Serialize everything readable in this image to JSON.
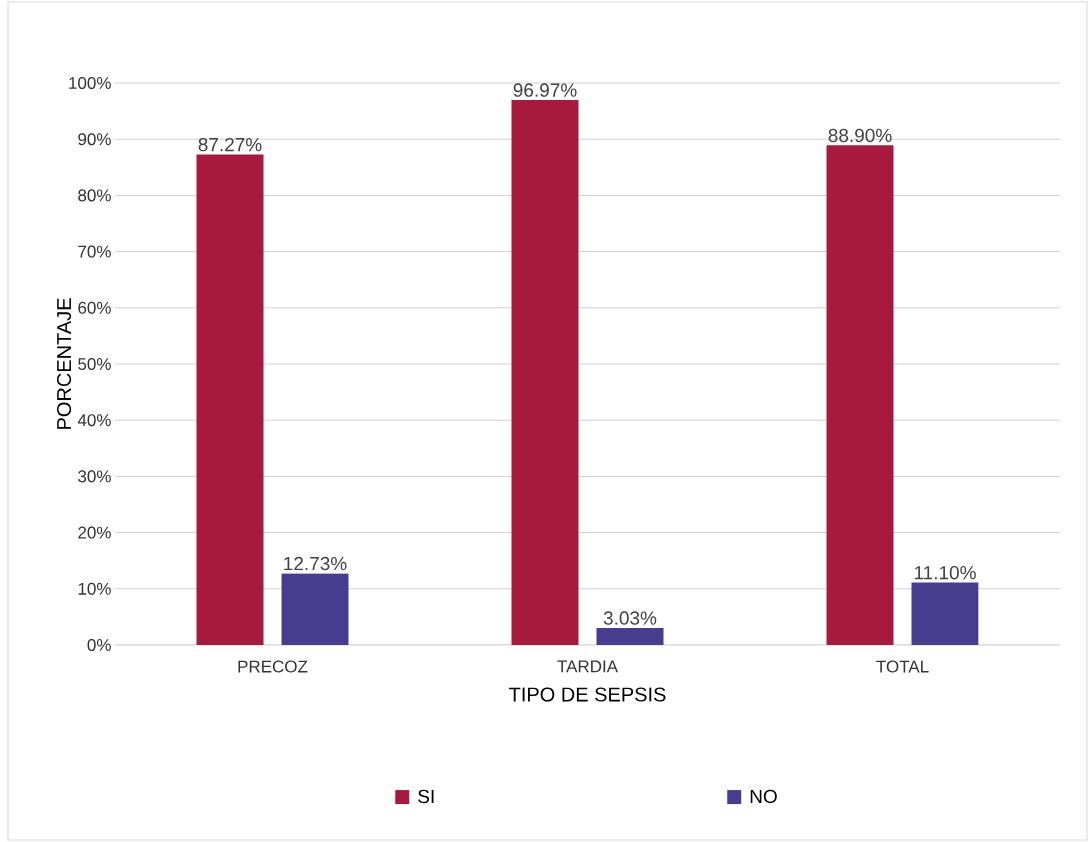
{
  "chart_data": {
    "type": "bar",
    "xlabel": "TIPO DE SEPSIS",
    "ylabel": "PORCENTAJE",
    "categories": [
      "PRECOZ",
      "TARDIA",
      "TOTAL"
    ],
    "series": [
      {
        "name": "SI",
        "color": "#a8193f",
        "values": [
          87.27,
          96.97,
          88.9
        ],
        "value_labels": [
          "87.27%",
          "96.97%",
          "88.90%"
        ]
      },
      {
        "name": "NO",
        "color": "#463d8f",
        "values": [
          12.73,
          3.03,
          11.1
        ],
        "value_labels": [
          "12.73%",
          "3.03%",
          "11.10%"
        ]
      }
    ],
    "ylim": [
      0,
      100
    ],
    "yticks": [
      {
        "value": 0,
        "label": "0%"
      },
      {
        "value": 10,
        "label": "10%"
      },
      {
        "value": 20,
        "label": "20%"
      },
      {
        "value": 30,
        "label": "30%"
      },
      {
        "value": 40,
        "label": "40%"
      },
      {
        "value": 50,
        "label": "50%"
      },
      {
        "value": 60,
        "label": "60%"
      },
      {
        "value": 70,
        "label": "70%"
      },
      {
        "value": 80,
        "label": "80%"
      },
      {
        "value": 90,
        "label": "90%"
      },
      {
        "value": 100,
        "label": "100%"
      }
    ],
    "grid": "y",
    "legend": "bottom"
  }
}
